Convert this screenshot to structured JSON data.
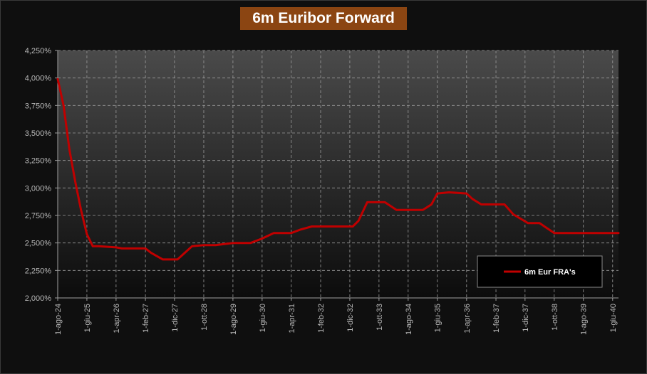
{
  "chart_data": {
    "type": "line",
    "title": "6m Euribor Forward",
    "xlabel": "",
    "ylabel": "",
    "ylim": [
      0.02,
      0.0425
    ],
    "y_ticks": [
      "2,000%",
      "2,250%",
      "2,500%",
      "2,750%",
      "3,000%",
      "3,250%",
      "3,500%",
      "3,750%",
      "4,000%",
      "4,250%"
    ],
    "x_range": [
      "2024-08-01",
      "2040-08-01"
    ],
    "x_ticks": [
      {
        "date": "2024-08-01",
        "label": "1-ago-24"
      },
      {
        "date": "2025-06-01",
        "label": "1-giu-25"
      },
      {
        "date": "2026-04-01",
        "label": "1-apr-26"
      },
      {
        "date": "2027-02-01",
        "label": "1-feb-27"
      },
      {
        "date": "2027-12-01",
        "label": "1-dic-27"
      },
      {
        "date": "2028-10-01",
        "label": "1-ott-28"
      },
      {
        "date": "2029-08-01",
        "label": "1-ago-29"
      },
      {
        "date": "2030-06-01",
        "label": "1-giu-30"
      },
      {
        "date": "2031-04-01",
        "label": "1-apr-31"
      },
      {
        "date": "2032-02-01",
        "label": "1-feb-32"
      },
      {
        "date": "2032-12-01",
        "label": "1-dic-32"
      },
      {
        "date": "2033-10-01",
        "label": "1-ott-33"
      },
      {
        "date": "2034-08-01",
        "label": "1-ago-34"
      },
      {
        "date": "2035-06-01",
        "label": "1-giu-35"
      },
      {
        "date": "2036-04-01",
        "label": "1-apr-36"
      },
      {
        "date": "2037-02-01",
        "label": "1-feb-37"
      },
      {
        "date": "2037-12-01",
        "label": "1-dic-37"
      },
      {
        "date": "2038-10-01",
        "label": "1-ott-38"
      },
      {
        "date": "2039-08-01",
        "label": "1-ago-39"
      },
      {
        "date": "2040-06-01",
        "label": "1-giu-40"
      }
    ],
    "grid": true,
    "legend": "bottom-right",
    "colors": {
      "line": "#c00000",
      "plot_top": "#4a4a4a",
      "plot_bottom": "#0c0c0c",
      "grid": "#9a9a9a",
      "title_bg": "#8b4512"
    },
    "series": [
      {
        "name": "6m Eur FRA's",
        "x": [
          "2024-08-01",
          "2024-10-01",
          "2024-12-01",
          "2025-02-01",
          "2025-04-01",
          "2025-06-01",
          "2025-08-01",
          "2025-10-01",
          "2026-04-01",
          "2026-06-01",
          "2027-02-01",
          "2027-04-01",
          "2027-08-01",
          "2027-12-01",
          "2028-01-01",
          "2028-06-01",
          "2028-10-01",
          "2029-02-01",
          "2029-08-01",
          "2029-10-01",
          "2030-02-01",
          "2030-06-01",
          "2030-10-01",
          "2031-04-01",
          "2031-07-01",
          "2031-11-01",
          "2032-02-01",
          "2032-05-01",
          "2032-09-01",
          "2033-01-01",
          "2033-03-01",
          "2033-06-01",
          "2033-10-01",
          "2033-12-01",
          "2034-04-01",
          "2034-08-01",
          "2035-01-01",
          "2035-04-01",
          "2035-06-01",
          "2035-10-01",
          "2036-04-01",
          "2036-06-01",
          "2036-09-01",
          "2037-02-01",
          "2037-05-01",
          "2037-08-01",
          "2038-01-01",
          "2038-05-01",
          "2038-10-01",
          "2040-08-01"
        ],
        "values": [
          0.0399,
          0.0375,
          0.0335,
          0.0305,
          0.028,
          0.0258,
          0.0247,
          0.0247,
          0.0246,
          0.0245,
          0.0245,
          0.0241,
          0.0235,
          0.0235,
          0.0235,
          0.0247,
          0.0248,
          0.0248,
          0.025,
          0.025,
          0.025,
          0.0254,
          0.0259,
          0.0259,
          0.0262,
          0.0265,
          0.0265,
          0.0265,
          0.0265,
          0.0265,
          0.027,
          0.0287,
          0.0287,
          0.0287,
          0.028,
          0.028,
          0.028,
          0.0285,
          0.0295,
          0.0296,
          0.0295,
          0.029,
          0.0285,
          0.0285,
          0.0285,
          0.0276,
          0.0268,
          0.0268,
          0.0259,
          0.0259
        ]
      }
    ]
  }
}
